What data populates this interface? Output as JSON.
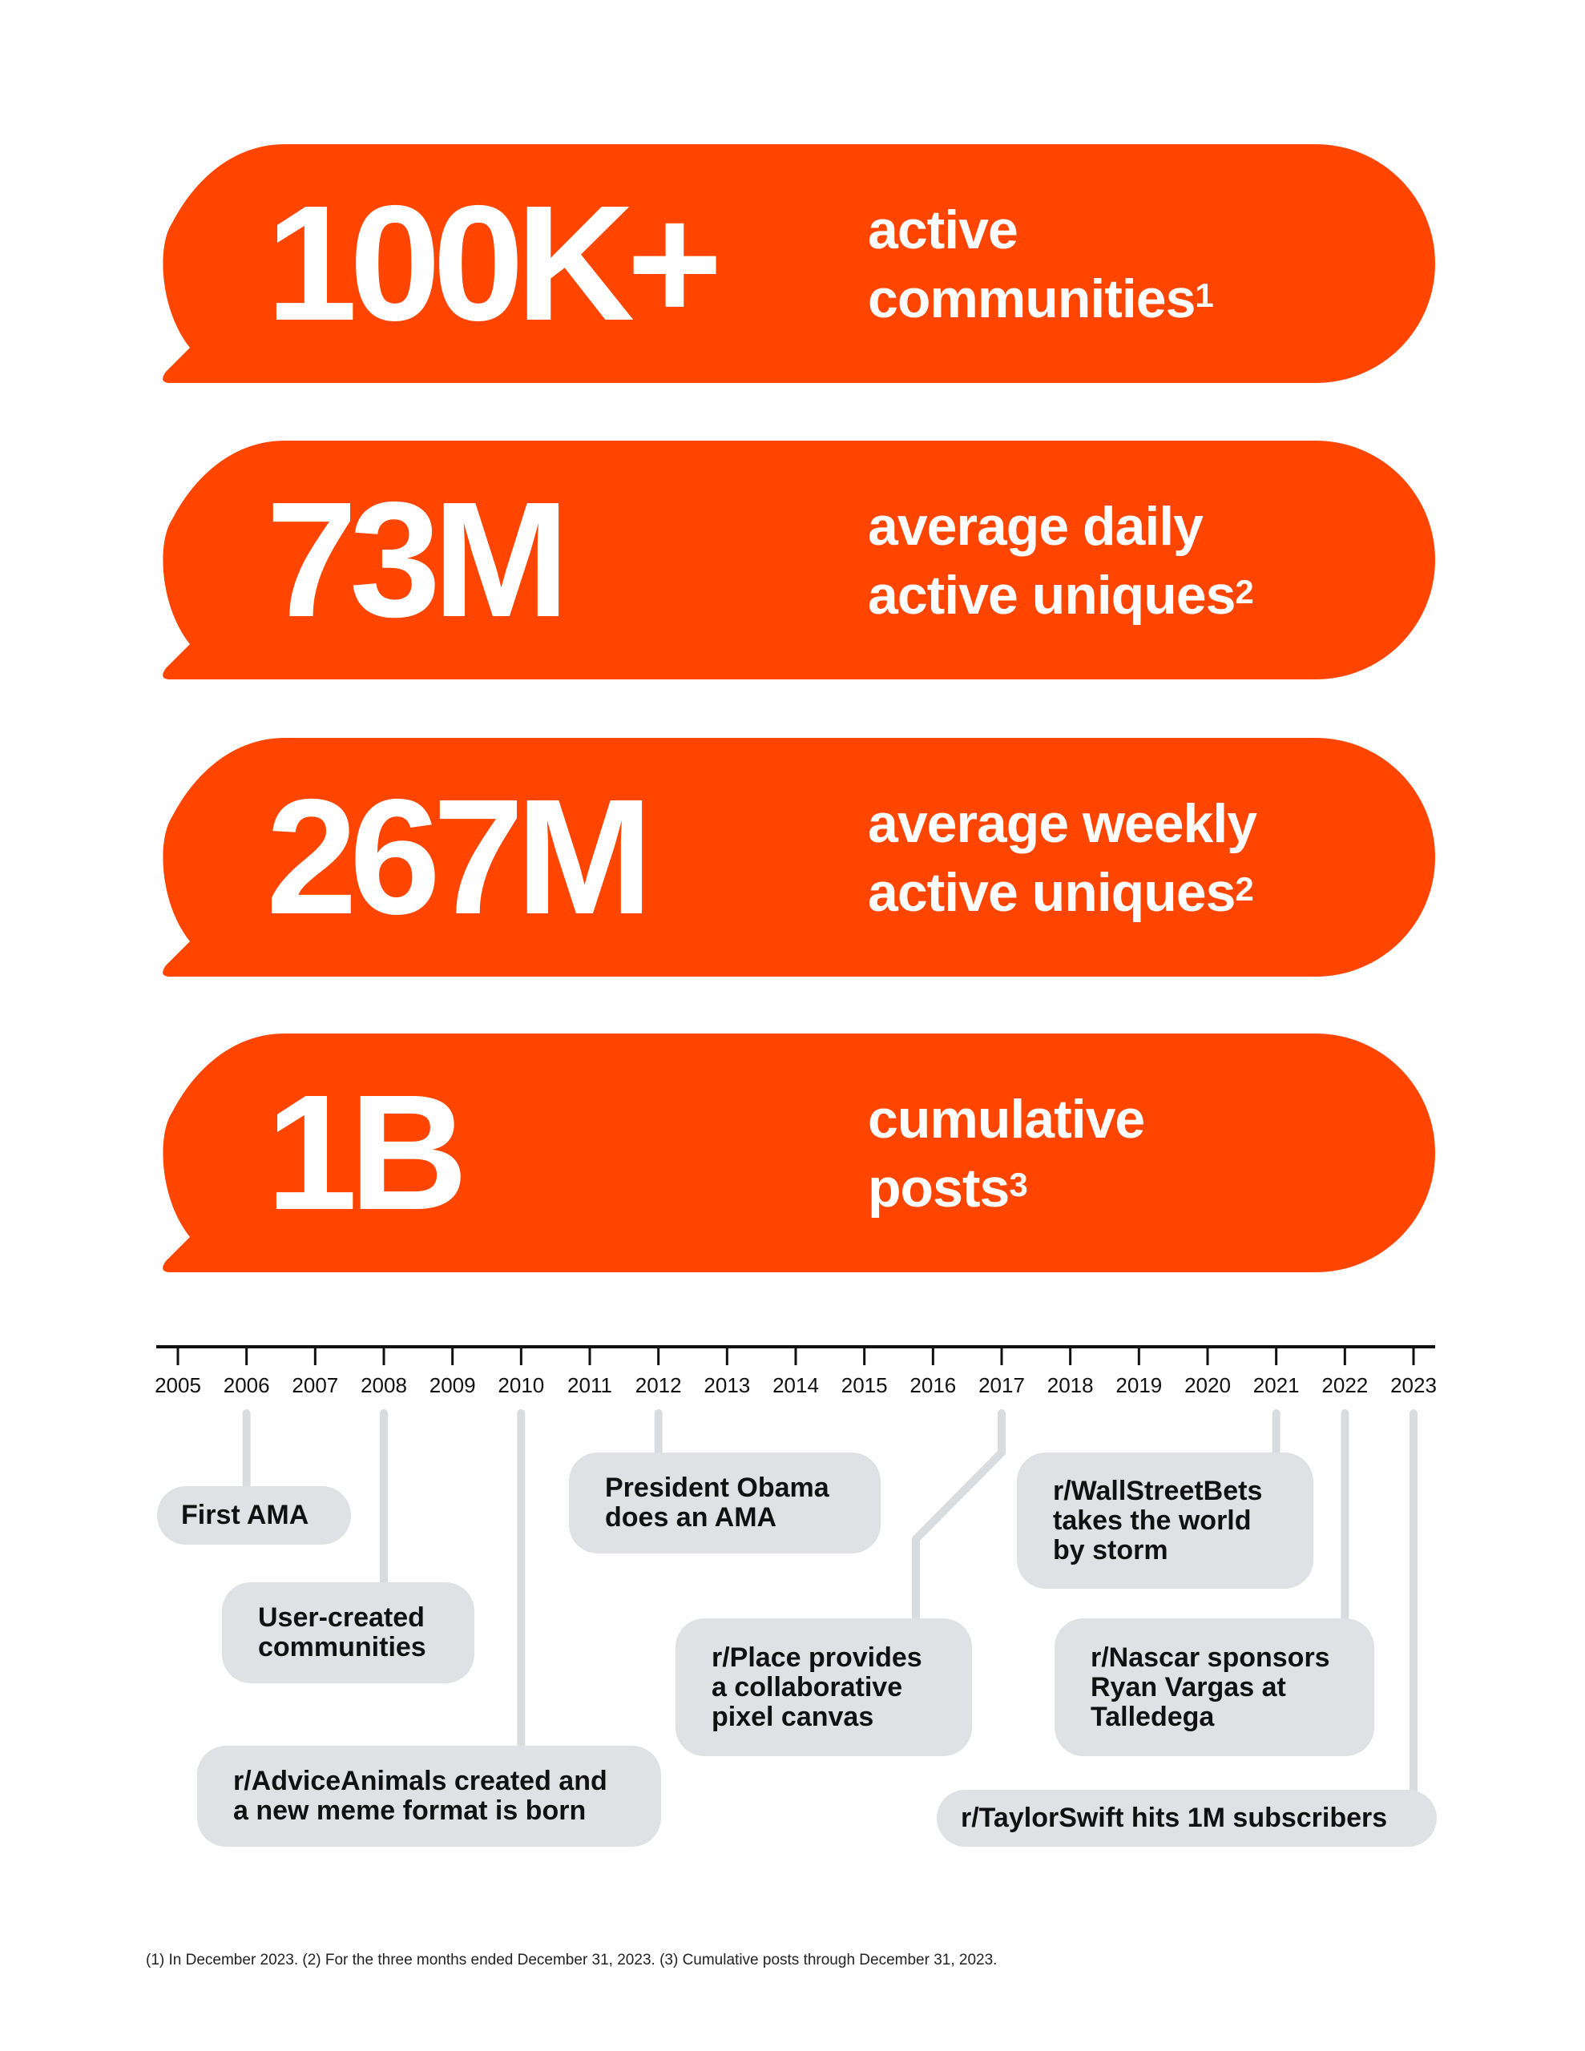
{
  "colors": {
    "accent": "#FF4500",
    "box": "#DFE1E4",
    "connector": "#D9DCDF",
    "axis": "#111111"
  },
  "stats": [
    {
      "value": "100K+",
      "label_line1": "active",
      "label_line2": "communities",
      "note": "1"
    },
    {
      "value": "73M",
      "label_line1": "average daily",
      "label_line2": "active uniques",
      "note": "2"
    },
    {
      "value": "267M",
      "label_line1": "average weekly",
      "label_line2": "active uniques",
      "note": "2"
    },
    {
      "value": "1B",
      "label_line1": "cumulative",
      "label_line2": "posts",
      "note": "3"
    }
  ],
  "timeline": {
    "years": [
      "2005",
      "2006",
      "2007",
      "2008",
      "2009",
      "2010",
      "2011",
      "2012",
      "2013",
      "2014",
      "2015",
      "2016",
      "2017",
      "2018",
      "2019",
      "2020",
      "2021",
      "2022",
      "2023"
    ],
    "events": [
      {
        "year": "2006",
        "text": "First AMA"
      },
      {
        "year": "2008",
        "text": "User-created communities"
      },
      {
        "year": "2010",
        "text": "r/AdviceAnimals created and a new meme format is born"
      },
      {
        "year": "2012",
        "text": "President Obama does an AMA"
      },
      {
        "year": "2017",
        "text": "r/Place provides a collaborative pixel canvas"
      },
      {
        "year": "2021",
        "text": "r/WallStreetBets takes the world by storm"
      },
      {
        "year": "2022",
        "text": "r/Nascar sponsors Ryan Vargas at Talledega"
      },
      {
        "year": "2023",
        "text": "r/TaylorSwift hits 1M subscribers"
      }
    ]
  },
  "footnote": "(1) In December 2023. (2) For the three months ended December 31, 2023. (3) Cumulative posts through December 31, 2023."
}
